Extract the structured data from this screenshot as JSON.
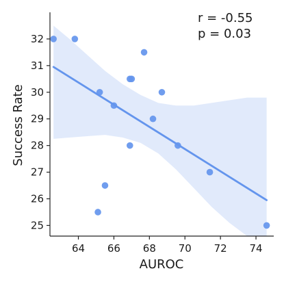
{
  "chart_data": {
    "type": "scatter",
    "title": "",
    "xlabel": "AUROC",
    "ylabel": "Success Rate",
    "xlim": [
      62.4,
      75.0
    ],
    "ylim": [
      24.6,
      33.0
    ],
    "xticks": [
      64,
      66,
      68,
      70,
      72,
      74
    ],
    "yticks": [
      25,
      26,
      27,
      28,
      29,
      30,
      31,
      32
    ],
    "grid": false,
    "points": [
      {
        "x": 62.6,
        "y": 32.0
      },
      {
        "x": 63.8,
        "y": 32.0
      },
      {
        "x": 65.1,
        "y": 25.5
      },
      {
        "x": 65.2,
        "y": 30.0
      },
      {
        "x": 65.5,
        "y": 26.5
      },
      {
        "x": 66.0,
        "y": 29.5
      },
      {
        "x": 66.9,
        "y": 30.5
      },
      {
        "x": 67.0,
        "y": 30.5
      },
      {
        "x": 66.9,
        "y": 28.0
      },
      {
        "x": 67.7,
        "y": 31.5
      },
      {
        "x": 68.2,
        "y": 29.0
      },
      {
        "x": 68.7,
        "y": 30.0
      },
      {
        "x": 69.6,
        "y": 28.0
      },
      {
        "x": 71.4,
        "y": 27.0
      },
      {
        "x": 74.6,
        "y": 25.0
      }
    ],
    "regression": {
      "x_start": 62.6,
      "y_start": 30.95,
      "x_end": 74.6,
      "y_end": 25.95
    },
    "ci_band": {
      "x": [
        62.6,
        63.5,
        64.5,
        65.5,
        66.5,
        67.5,
        68.5,
        69.5,
        70.5,
        71.5,
        72.5,
        73.5,
        74.6
      ],
      "upper": [
        32.5,
        32.0,
        31.4,
        30.8,
        30.3,
        29.9,
        29.6,
        29.5,
        29.5,
        29.6,
        29.7,
        29.8,
        29.8
      ],
      "lower": [
        28.25,
        28.3,
        28.35,
        28.4,
        28.3,
        28.1,
        27.7,
        27.1,
        26.4,
        25.7,
        25.1,
        24.6,
        24.3
      ]
    },
    "annotations": [
      "r = -0.55",
      "p = 0.03"
    ],
    "colors": {
      "points": "#6495ED",
      "line": "#6495ED",
      "band": "#dce6fa"
    }
  }
}
